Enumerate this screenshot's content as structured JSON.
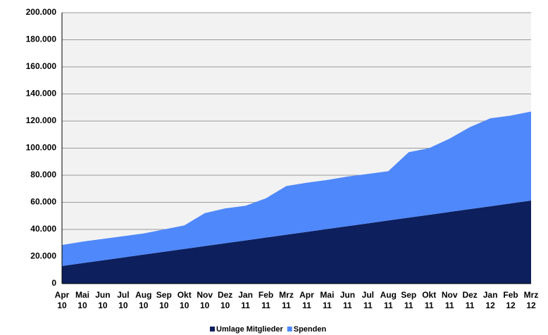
{
  "chart_data": {
    "type": "stacked_area",
    "categories": [
      "Apr 10",
      "Mai 10",
      "Jun 10",
      "Jul 10",
      "Aug 10",
      "Sep 10",
      "Okt 10",
      "Nov 10",
      "Dez 10",
      "Jan 11",
      "Feb 11",
      "Mrz 11",
      "Apr 11",
      "Mai 11",
      "Jun 11",
      "Jul 11",
      "Aug 11",
      "Sep 11",
      "Okt 11",
      "Nov 11",
      "Dez 11",
      "Jan 12",
      "Feb 12",
      "Mrz 12"
    ],
    "series": [
      {
        "name": "Umlage Mitglieder",
        "color": "#0d1f5c",
        "values": [
          13000,
          15100,
          17200,
          19300,
          21400,
          23500,
          25600,
          27700,
          29800,
          31900,
          34000,
          36100,
          38200,
          40300,
          42400,
          44500,
          46600,
          48700,
          50800,
          52900,
          55000,
          57100,
          59200,
          61300
        ]
      },
      {
        "name": "Spenden",
        "color": "#4f88fb",
        "values": [
          15500,
          15900,
          15800,
          15700,
          15600,
          16500,
          17400,
          24300,
          25700,
          25600,
          29000,
          35900,
          36300,
          36200,
          36600,
          36500,
          36400,
          48300,
          49200,
          54100,
          60500,
          64900,
          64800,
          65700
        ]
      }
    ],
    "ylim": [
      0,
      200000
    ],
    "yticks": [
      0,
      {
        "value": 20000,
        "label": "20.000"
      },
      {
        "value": 40000,
        "label": "40.000"
      },
      {
        "value": 60000,
        "label": "60.000"
      },
      {
        "value": 80000,
        "label": "80.000"
      },
      {
        "value": 100000,
        "label": "100.000"
      },
      {
        "value": 120000,
        "label": "120.000"
      },
      {
        "value": 140000,
        "label": "140.000"
      },
      {
        "value": 160000,
        "label": "160.000"
      },
      {
        "value": 180000,
        "label": "180.000"
      },
      {
        "value": 200000,
        "label": "200.000"
      }
    ],
    "grid": true,
    "legend": "bottom"
  }
}
